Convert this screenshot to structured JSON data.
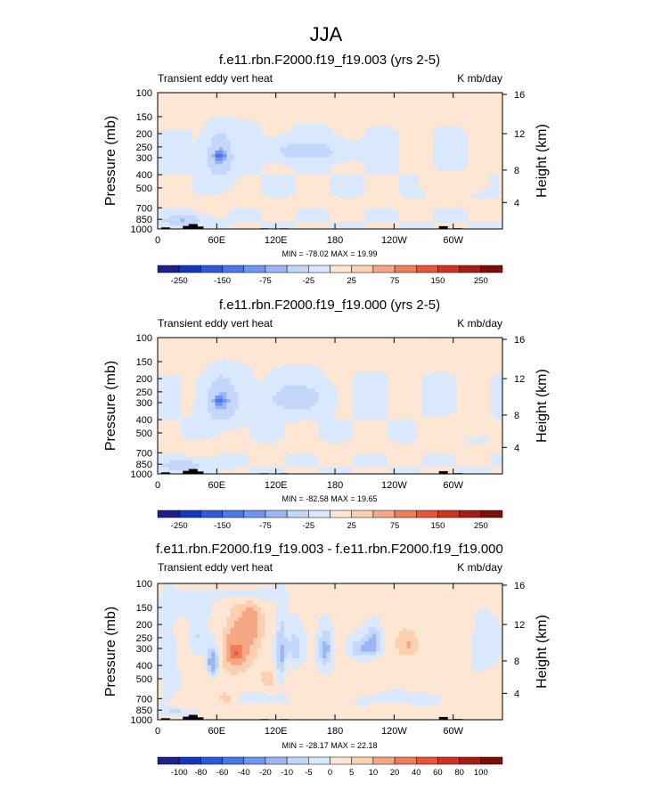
{
  "page_title": "JJA",
  "palette_main": [
    "#1e1e8c",
    "#1437be",
    "#2d5adc",
    "#4b78e6",
    "#6e96f0",
    "#9bb6f5",
    "#c3d7fa",
    "#d9e8fc",
    "#fde6d3",
    "#fbcfb0",
    "#f5a784",
    "#ef7c5a",
    "#e6553a",
    "#cd3222",
    "#a51e14",
    "#7d0f0a"
  ],
  "chart_data": [
    {
      "type": "heatmap",
      "title": "f.e11.rbn.F2000.f19_f19.003 (yrs 2-5)",
      "left_label": "Transient eddy vert heat",
      "right_label": "K mb/day",
      "ylabel": "Pressure (mb)",
      "ylabel_right": "Height (km)",
      "y_ticks": [
        "100",
        "150",
        "200",
        "250",
        "300",
        "400",
        "500",
        "700",
        "850",
        "1000"
      ],
      "y_ticks_right": [
        "16",
        "12",
        "8",
        "4"
      ],
      "x_ticks": [
        "0",
        "60E",
        "120E",
        "180",
        "120W",
        "60W"
      ],
      "stats": "MIN = -78.02  MAX = 19.99",
      "colorbar_labels": [
        "-250",
        "-150",
        "-75",
        "-25",
        "25",
        "75",
        "150",
        "250"
      ],
      "background_value": -10,
      "features": [
        {
          "lon": 180,
          "p": 125,
          "rlon": 180,
          "rp": 20,
          "v": 12
        },
        {
          "lon": 10,
          "p": 145,
          "rlon": 40,
          "rp": 25,
          "v": 10
        },
        {
          "lon": 250,
          "p": 140,
          "rlon": 60,
          "rp": 25,
          "v": 10
        },
        {
          "lon": 330,
          "p": 140,
          "rlon": 40,
          "rp": 25,
          "v": 10
        },
        {
          "lon": 180,
          "p": 650,
          "rlon": 150,
          "rp": 45,
          "v": 10
        },
        {
          "lon": 40,
          "p": 630,
          "rlon": 40,
          "rp": 50,
          "v": 10
        },
        {
          "lon": 300,
          "p": 480,
          "rlon": 25,
          "rp": 60,
          "v": 10
        },
        {
          "lon": 63,
          "p": 300,
          "rlon": 12,
          "rp": 100,
          "v": -45
        },
        {
          "lon": 63,
          "p": 290,
          "rlon": 5,
          "rp": 20,
          "v": -80
        },
        {
          "lon": 150,
          "p": 270,
          "rlon": 35,
          "rp": 40,
          "v": -30
        },
        {
          "lon": 25,
          "p": 870,
          "rlon": 20,
          "rp": 70,
          "v": -40
        }
      ],
      "terrain": [
        {
          "lon": 8,
          "p": 975
        },
        {
          "lon": 30,
          "p": 950
        },
        {
          "lon": 36,
          "p": 920
        },
        {
          "lon": 42,
          "p": 960
        },
        {
          "lon": 108,
          "p": 990
        },
        {
          "lon": 128,
          "p": 990
        },
        {
          "lon": 290,
          "p": 955
        },
        {
          "lon": 305,
          "p": 988
        }
      ]
    },
    {
      "type": "heatmap",
      "title": "f.e11.rbn.F2000.f19_f19.000 (yrs 2-5)",
      "left_label": "Transient eddy vert heat",
      "right_label": "K mb/day",
      "ylabel": "Pressure (mb)",
      "ylabel_right": "Height (km)",
      "y_ticks": [
        "100",
        "150",
        "200",
        "250",
        "300",
        "400",
        "500",
        "700",
        "850",
        "1000"
      ],
      "y_ticks_right": [
        "16",
        "12",
        "8",
        "4"
      ],
      "x_ticks": [
        "0",
        "60E",
        "120E",
        "180",
        "120W",
        "60W"
      ],
      "stats": "MIN = -82.58  MAX = 19.65",
      "colorbar_labels": [
        "-250",
        "-150",
        "-75",
        "-25",
        "25",
        "75",
        "150",
        "250"
      ],
      "background_value": -10,
      "features": [
        {
          "lon": 180,
          "p": 125,
          "rlon": 180,
          "rp": 20,
          "v": 12
        },
        {
          "lon": 10,
          "p": 145,
          "rlon": 40,
          "rp": 25,
          "v": 10
        },
        {
          "lon": 250,
          "p": 140,
          "rlon": 60,
          "rp": 25,
          "v": 10
        },
        {
          "lon": 330,
          "p": 140,
          "rlon": 40,
          "rp": 25,
          "v": 10
        },
        {
          "lon": 180,
          "p": 650,
          "rlon": 150,
          "rp": 45,
          "v": 10
        },
        {
          "lon": 40,
          "p": 630,
          "rlon": 40,
          "rp": 50,
          "v": 10
        },
        {
          "lon": 300,
          "p": 480,
          "rlon": 25,
          "rp": 60,
          "v": 10
        },
        {
          "lon": 65,
          "p": 300,
          "rlon": 15,
          "rp": 100,
          "v": -45
        },
        {
          "lon": 63,
          "p": 290,
          "rlon": 5,
          "rp": 20,
          "v": -85
        },
        {
          "lon": 140,
          "p": 280,
          "rlon": 25,
          "rp": 60,
          "v": -35
        },
        {
          "lon": 25,
          "p": 870,
          "rlon": 20,
          "rp": 70,
          "v": -40
        }
      ],
      "terrain": [
        {
          "lon": 8,
          "p": 975
        },
        {
          "lon": 30,
          "p": 950
        },
        {
          "lon": 36,
          "p": 920
        },
        {
          "lon": 42,
          "p": 960
        },
        {
          "lon": 108,
          "p": 990
        },
        {
          "lon": 128,
          "p": 990
        },
        {
          "lon": 290,
          "p": 955
        },
        {
          "lon": 305,
          "p": 988
        }
      ]
    },
    {
      "type": "heatmap",
      "title": "f.e11.rbn.F2000.f19_f19.003 - f.e11.rbn.F2000.f19_f19.000",
      "left_label": "Transient eddy vert heat",
      "right_label": "K mb/day",
      "ylabel": "Pressure (mb)",
      "ylabel_right": "Height (km)",
      "y_ticks": [
        "100",
        "150",
        "200",
        "250",
        "300",
        "400",
        "500",
        "700",
        "850",
        "1000"
      ],
      "y_ticks_right": [
        "16",
        "12",
        "8",
        "4"
      ],
      "x_ticks": [
        "0",
        "60E",
        "120E",
        "180",
        "120W",
        "60W"
      ],
      "stats": "MIN = -28.17  MAX = 22.18",
      "colorbar_labels": [
        "-100",
        "-80",
        "-60",
        "-40",
        "-20",
        "-10",
        "-5",
        "0",
        "5",
        "10",
        "20",
        "40",
        "60",
        "80",
        "100"
      ],
      "colorbar_levels": [
        -100,
        -80,
        -60,
        -40,
        -20,
        -10,
        -5,
        0,
        5,
        10,
        20,
        40,
        60,
        80,
        100
      ],
      "background_value": 2,
      "features": [
        {
          "lon": 80,
          "p": 300,
          "rlon": 14,
          "rp": 120,
          "v": 16
        },
        {
          "lon": 80,
          "p": 320,
          "rlon": 5,
          "rp": 30,
          "v": 24
        },
        {
          "lon": 95,
          "p": 200,
          "rlon": 10,
          "rp": 60,
          "v": 12
        },
        {
          "lon": 56,
          "p": 380,
          "rlon": 5,
          "rp": 80,
          "v": -22
        },
        {
          "lon": 40,
          "p": 250,
          "rlon": 10,
          "rp": 80,
          "v": -8
        },
        {
          "lon": 10,
          "p": 400,
          "rlon": 10,
          "rp": 300,
          "v": -6
        },
        {
          "lon": 125,
          "p": 350,
          "rlon": 5,
          "rp": 200,
          "v": -12
        },
        {
          "lon": 140,
          "p": 300,
          "rlon": 10,
          "rp": 100,
          "v": -8
        },
        {
          "lon": 170,
          "p": 300,
          "rlon": 8,
          "rp": 100,
          "v": -16
        },
        {
          "lon": 210,
          "p": 300,
          "rlon": 15,
          "rp": 50,
          "v": -12
        },
        {
          "lon": 220,
          "p": 250,
          "rlon": 8,
          "rp": 60,
          "v": -10
        },
        {
          "lon": 255,
          "p": 280,
          "rlon": 10,
          "rp": 60,
          "v": 8
        },
        {
          "lon": 250,
          "p": 700,
          "rlon": 40,
          "rp": 80,
          "v": -5
        },
        {
          "lon": 100,
          "p": 700,
          "rlon": 25,
          "rp": 60,
          "v": -6
        },
        {
          "lon": 70,
          "p": 700,
          "rlon": 8,
          "rp": 60,
          "v": 8
        },
        {
          "lon": 110,
          "p": 500,
          "rlon": 12,
          "rp": 80,
          "v": 6
        },
        {
          "lon": 330,
          "p": 300,
          "rlon": 15,
          "rp": 150,
          "v": -5
        },
        {
          "lon": 30,
          "p": 150,
          "rlon": 25,
          "rp": 30,
          "v": -5
        },
        {
          "lon": 90,
          "p": 120,
          "rlon": 40,
          "rp": 15,
          "v": -5
        },
        {
          "lon": 20,
          "p": 880,
          "rlon": 20,
          "rp": 60,
          "v": -8
        }
      ],
      "terrain": [
        {
          "lon": 8,
          "p": 975
        },
        {
          "lon": 30,
          "p": 950
        },
        {
          "lon": 36,
          "p": 920
        },
        {
          "lon": 42,
          "p": 960
        },
        {
          "lon": 108,
          "p": 990
        },
        {
          "lon": 128,
          "p": 990
        },
        {
          "lon": 290,
          "p": 955
        },
        {
          "lon": 305,
          "p": 988
        }
      ]
    }
  ]
}
